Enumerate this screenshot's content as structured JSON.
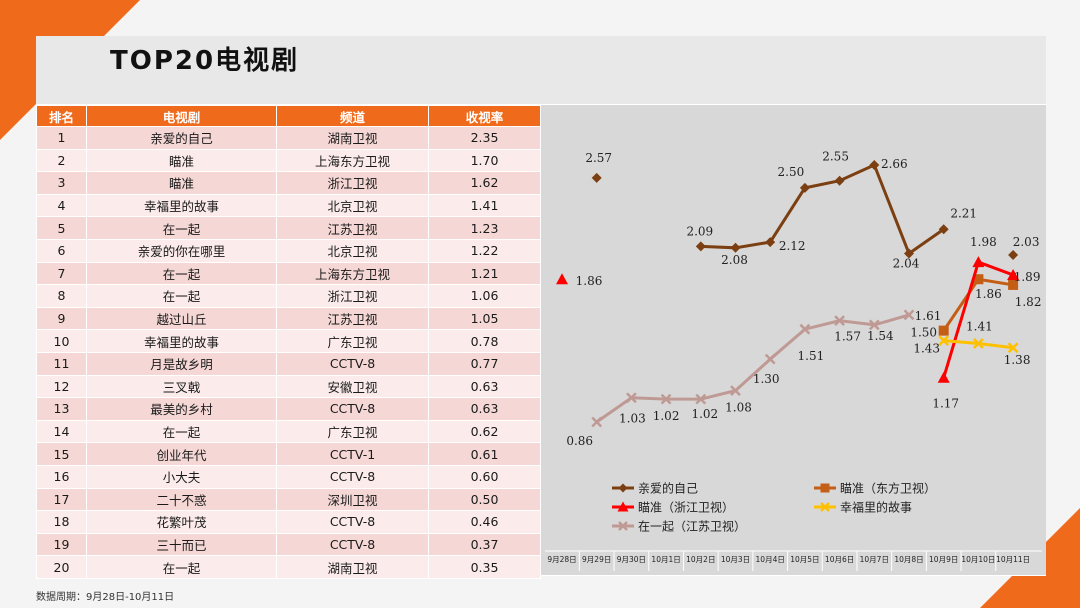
{
  "page": {
    "title": "TOP20电视剧",
    "footer": "数据周期：9月28日-10月11日"
  },
  "table": {
    "headers": [
      "排名",
      "电视剧",
      "频道",
      "收视率"
    ],
    "rows": [
      [
        "1",
        "亲爱的自己",
        "湖南卫视",
        "2.35"
      ],
      [
        "2",
        "瞄准",
        "上海东方卫视",
        "1.70"
      ],
      [
        "3",
        "瞄准",
        "浙江卫视",
        "1.62"
      ],
      [
        "4",
        "幸福里的故事",
        "北京卫视",
        "1.41"
      ],
      [
        "5",
        "在一起",
        "江苏卫视",
        "1.23"
      ],
      [
        "6",
        "亲爱的你在哪里",
        "北京卫视",
        "1.22"
      ],
      [
        "7",
        "在一起",
        "上海东方卫视",
        "1.21"
      ],
      [
        "8",
        "在一起",
        "浙江卫视",
        "1.06"
      ],
      [
        "9",
        "越过山丘",
        "江苏卫视",
        "1.05"
      ],
      [
        "10",
        "幸福里的故事",
        "广东卫视",
        "0.78"
      ],
      [
        "11",
        "月是故乡明",
        "CCTV-8",
        "0.77"
      ],
      [
        "12",
        "三叉戟",
        "安徽卫视",
        "0.63"
      ],
      [
        "13",
        "最美的乡村",
        "CCTV-8",
        "0.63"
      ],
      [
        "14",
        "在一起",
        "广东卫视",
        "0.62"
      ],
      [
        "15",
        "创业年代",
        "CCTV-1",
        "0.61"
      ],
      [
        "16",
        "小大夫",
        "CCTV-8",
        "0.60"
      ],
      [
        "17",
        "二十不惑",
        "深圳卫视",
        "0.50"
      ],
      [
        "18",
        "花繁叶茂",
        "CCTV-8",
        "0.46"
      ],
      [
        "19",
        "三十而已",
        "CCTV-8",
        "0.37"
      ],
      [
        "20",
        "在一起",
        "湖南卫视",
        "0.35"
      ]
    ]
  },
  "chart_data": {
    "type": "line",
    "categories": [
      "9月28日",
      "9月29日",
      "9月30日",
      "10月1日",
      "10月2日",
      "10月3日",
      "10月4日",
      "10月5日",
      "10月6日",
      "10月7日",
      "10月8日",
      "10月9日",
      "10月10日",
      "10月11日"
    ],
    "series": [
      {
        "name": "亲爱的自己",
        "color": "#7b3f12",
        "marker": "diamond",
        "values": [
          null,
          2.57,
          null,
          null,
          2.09,
          2.08,
          2.12,
          2.5,
          2.55,
          2.66,
          2.04,
          2.21,
          null,
          2.03
        ]
      },
      {
        "name": "瞄准（东方卫视）",
        "color": "#c45e15",
        "marker": "square",
        "values": [
          null,
          null,
          null,
          null,
          null,
          null,
          null,
          null,
          null,
          null,
          null,
          1.5,
          1.86,
          1.82
        ]
      },
      {
        "name": "瞄准（浙江卫视）",
        "color": "#ff0000",
        "marker": "triangle",
        "values": [
          1.86,
          null,
          null,
          null,
          null,
          null,
          null,
          null,
          null,
          null,
          null,
          1.17,
          1.98,
          1.89
        ]
      },
      {
        "name": "幸福里的故事",
        "color": "#ffc000",
        "marker": "x",
        "values": [
          null,
          null,
          null,
          null,
          null,
          null,
          null,
          null,
          null,
          null,
          null,
          1.43,
          1.41,
          1.38
        ]
      },
      {
        "name": "在一起（江苏卫视）",
        "color": "#bf9a94",
        "marker": "x",
        "values": [
          null,
          0.86,
          1.03,
          1.02,
          1.02,
          1.08,
          1.3,
          1.51,
          1.57,
          1.54,
          1.61,
          null,
          null,
          null
        ]
      }
    ],
    "legend_position": "bottom",
    "grid": false
  },
  "colors": {
    "accent": "#f06a1c",
    "row_odd": "#f5d8d6",
    "row_even": "#fbeceb",
    "chart_bg": "#d8d8d8"
  }
}
